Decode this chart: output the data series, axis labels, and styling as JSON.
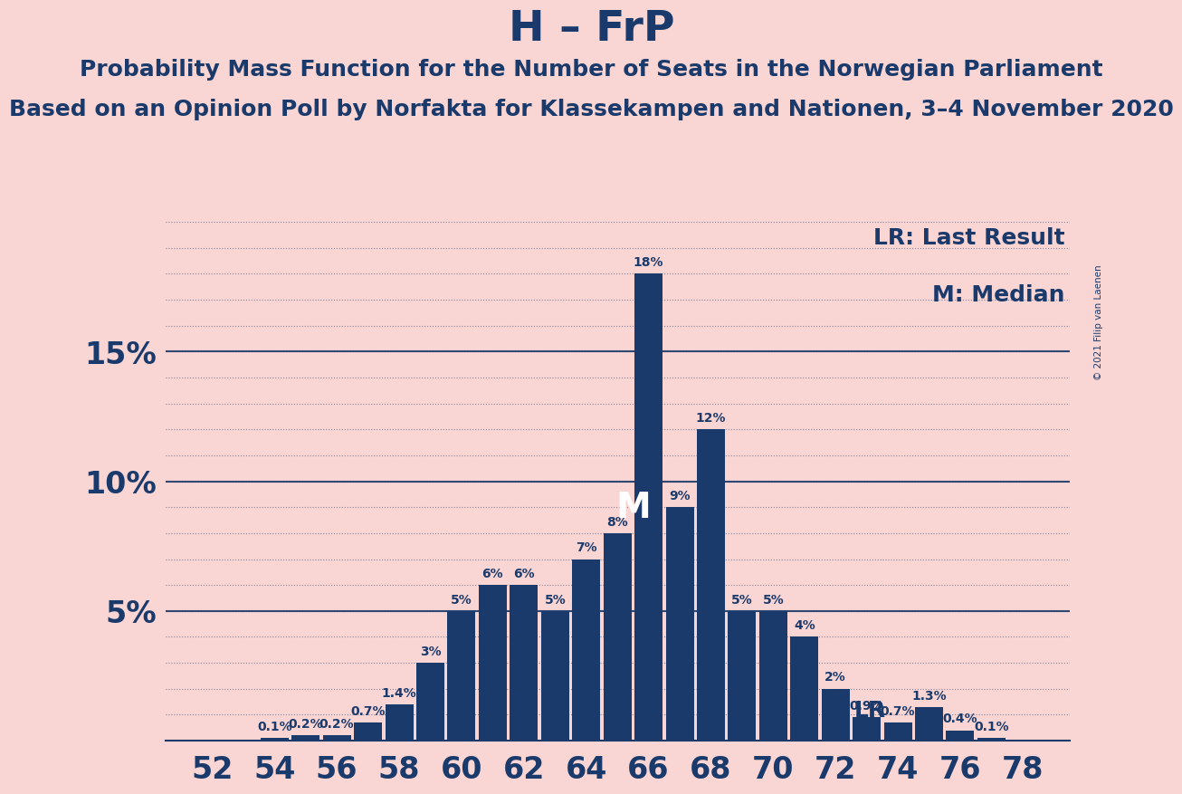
{
  "title": "H – FrP",
  "subtitle1": "Probability Mass Function for the Number of Seats in the Norwegian Parliament",
  "subtitle2": "Based on an Opinion Poll by Norfakta for Klassekampen and Nationen, 3–4 November 2020",
  "copyright": "© 2021 Filip van Laenen",
  "legend_lr": "LR: Last Result",
  "legend_m": "M: Median",
  "seats": [
    52,
    53,
    54,
    55,
    56,
    57,
    58,
    59,
    60,
    61,
    62,
    63,
    64,
    65,
    66,
    67,
    68,
    69,
    70,
    71,
    72,
    73,
    74,
    75,
    76,
    77,
    78
  ],
  "values": [
    0.0,
    0.0,
    0.1,
    0.2,
    0.2,
    0.7,
    1.4,
    3.0,
    5.0,
    6.0,
    6.0,
    5.0,
    7.0,
    8.0,
    18.0,
    9.0,
    12.0,
    5.0,
    5.0,
    4.0,
    2.0,
    0.9,
    0.7,
    1.3,
    0.4,
    0.1,
    0.0
  ],
  "bar_color": "#1a3a6b",
  "background_color": "#f9d5d3",
  "text_color": "#1a3a6b",
  "median_seat": 66,
  "lr_seat": 72,
  "xlim": [
    50.5,
    79.5
  ],
  "ylim": [
    0,
    20
  ],
  "yticks": [
    5,
    10,
    15
  ],
  "ytick_labels": [
    "5%",
    "10%",
    "15%"
  ],
  "xtick_seats": [
    52,
    54,
    56,
    58,
    60,
    62,
    64,
    66,
    68,
    70,
    72,
    74,
    76,
    78
  ],
  "title_fontsize": 34,
  "subtitle1_fontsize": 18,
  "subtitle2_fontsize": 18,
  "bar_label_fontsize": 10,
  "axis_label_fontsize": 24,
  "legend_fontsize": 18,
  "ytick_fontsize": 24,
  "grid_yticks": [
    1,
    2,
    3,
    4,
    5,
    6,
    7,
    8,
    9,
    10,
    11,
    12,
    13,
    14,
    15,
    16,
    17,
    18,
    19,
    20
  ]
}
